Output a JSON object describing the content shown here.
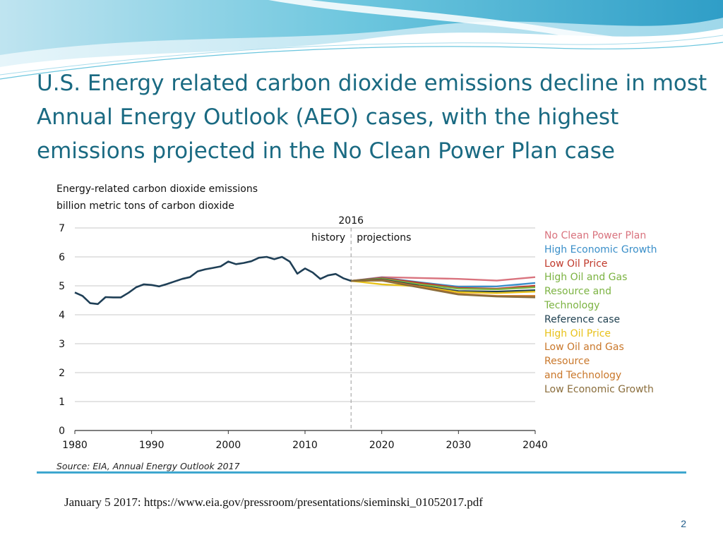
{
  "slide": {
    "title": "U.S. Energy related carbon dioxide emissions decline in most Annual Energy Outlook (AEO) cases, with the highest emissions projected in the No Clean Power Plan case",
    "footnote": "January 5 2017: https://www.eia.gov/pressroom/presentations/sieminski_01052017.pdf",
    "page_number": "2"
  },
  "colors": {
    "title": "#1a6a82",
    "history_line": "#1f3f56",
    "grid": "#c8c8c8",
    "accent_rule": "#3ea7cf"
  },
  "chart_data": {
    "type": "line",
    "title": "Energy-related carbon dioxide emissions",
    "subtitle": "billion metric tons of carbon dioxide",
    "source": "Source: EIA, Annual Energy Outlook 2017",
    "xlim": [
      1980,
      2040
    ],
    "ylim": [
      0,
      7
    ],
    "x_ticks": [
      1980,
      1990,
      2000,
      2010,
      2020,
      2030,
      2040
    ],
    "y_ticks": [
      0,
      1,
      2,
      3,
      4,
      5,
      6,
      7
    ],
    "divider": {
      "year": 2016,
      "label": "2016",
      "history_label": "history",
      "projections_label": "projections"
    },
    "history": {
      "name": "history",
      "x": [
        1980,
        1981,
        1982,
        1983,
        1984,
        1985,
        1986,
        1987,
        1988,
        1989,
        1990,
        1991,
        1992,
        1993,
        1994,
        1995,
        1996,
        1997,
        1998,
        1999,
        2000,
        2001,
        2002,
        2003,
        2004,
        2005,
        2006,
        2007,
        2008,
        2009,
        2010,
        2011,
        2012,
        2013,
        2014,
        2015,
        2016
      ],
      "y": [
        4.77,
        4.65,
        4.4,
        4.37,
        4.61,
        4.6,
        4.6,
        4.76,
        4.95,
        5.05,
        5.03,
        4.98,
        5.06,
        5.15,
        5.24,
        5.3,
        5.5,
        5.57,
        5.62,
        5.67,
        5.84,
        5.75,
        5.79,
        5.85,
        5.97,
        6.0,
        5.92,
        6.0,
        5.84,
        5.42,
        5.6,
        5.46,
        5.24,
        5.36,
        5.41,
        5.26,
        5.17
      ]
    },
    "series": [
      {
        "name": "No Clean Power Plan",
        "color": "#d9737e",
        "x": [
          2016,
          2020,
          2025,
          2030,
          2035,
          2040
        ],
        "values": [
          5.17,
          5.3,
          5.27,
          5.24,
          5.18,
          5.3
        ]
      },
      {
        "name": "High Economic Growth",
        "color": "#3a8fc9",
        "x": [
          2016,
          2020,
          2025,
          2030,
          2035,
          2040
        ],
        "values": [
          5.17,
          5.28,
          5.12,
          4.97,
          4.98,
          5.1
        ]
      },
      {
        "name": "Low Oil Price",
        "color": "#c0392b",
        "x": [
          2016,
          2020,
          2025,
          2030,
          2035,
          2040
        ],
        "values": [
          5.17,
          5.27,
          5.1,
          4.93,
          4.9,
          5.0
        ]
      },
      {
        "name": "High Oil and Gas Resource and Technology",
        "color": "#7cb342",
        "x": [
          2016,
          2020,
          2025,
          2030,
          2035,
          2040
        ],
        "values": [
          5.17,
          5.25,
          5.05,
          4.9,
          4.88,
          4.95
        ]
      },
      {
        "name": "Reference case",
        "color": "#1e3f4f",
        "x": [
          2016,
          2020,
          2025,
          2030,
          2035,
          2040
        ],
        "values": [
          5.17,
          5.22,
          5.0,
          4.82,
          4.8,
          4.85
        ]
      },
      {
        "name": "High Oil Price",
        "color": "#e8c21a",
        "x": [
          2016,
          2020,
          2025,
          2030,
          2035,
          2040
        ],
        "values": [
          5.17,
          5.05,
          4.98,
          4.78,
          4.75,
          4.8
        ]
      },
      {
        "name": "Low Oil and Gas Resource and Technology",
        "color": "#c9772a",
        "x": [
          2016,
          2020,
          2025,
          2030,
          2035,
          2040
        ],
        "values": [
          5.17,
          5.2,
          4.97,
          4.72,
          4.65,
          4.65
        ]
      },
      {
        "name": "Low Economic Growth",
        "color": "#8a6d3b",
        "x": [
          2016,
          2020,
          2025,
          2030,
          2035,
          2040
        ],
        "values": [
          5.17,
          5.18,
          4.94,
          4.7,
          4.63,
          4.6
        ]
      }
    ],
    "legend": [
      {
        "label": "No Clean Power Plan",
        "color": "#d9737e"
      },
      {
        "label": "High Economic Growth",
        "color": "#3a8fc9"
      },
      {
        "label": "Low Oil Price",
        "color": "#c0392b"
      },
      {
        "label": "High Oil and Gas",
        "color": "#7cb342"
      },
      {
        "label": "Resource and",
        "color": "#7cb342"
      },
      {
        "label": "Technology",
        "color": "#7cb342"
      },
      {
        "label": "Reference case",
        "color": "#1e3f4f"
      },
      {
        "label": "High Oil Price",
        "color": "#e8c21a"
      },
      {
        "label": "Low Oil and Gas",
        "color": "#c9772a"
      },
      {
        "label": "Resource",
        "color": "#c9772a"
      },
      {
        "label": "and Technology",
        "color": "#c9772a"
      },
      {
        "label": "Low Economic Growth",
        "color": "#8a6d3b"
      }
    ]
  }
}
